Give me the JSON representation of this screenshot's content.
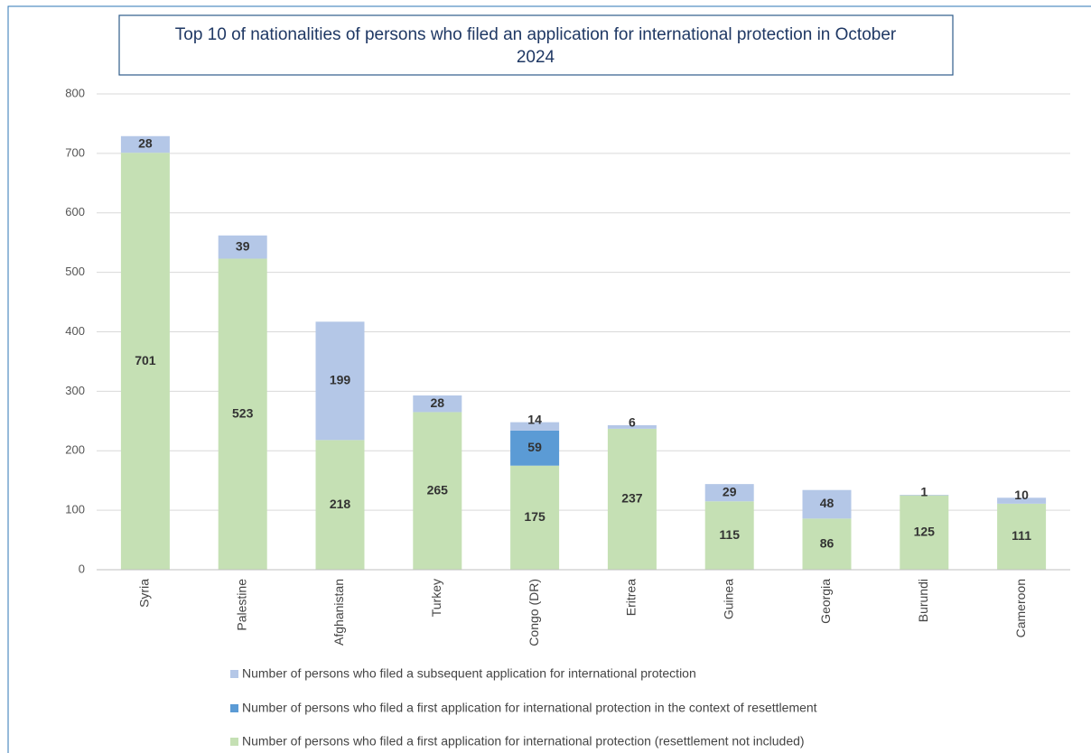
{
  "chart_data": {
    "type": "stacked_bar",
    "title": "Top 10 of nationalities of persons who filed an application for international protection in October 2024",
    "categories": [
      "Syria",
      "Palestine",
      "Afghanistan",
      "Turkey",
      "Congo (DR)",
      "Eritrea",
      "Guinea",
      "Georgia",
      "Burundi",
      "Cameroon"
    ],
    "series": [
      {
        "name": "Number of persons who filed a first application for international protection (resettlement not included)",
        "color": "#c5e0b4",
        "values": [
          701,
          523,
          218,
          265,
          175,
          237,
          115,
          86,
          125,
          111
        ]
      },
      {
        "name": "Number of persons who filed a first application for international protection in the context of resettlement",
        "color": "#5b9bd5",
        "values": [
          null,
          null,
          null,
          null,
          59,
          null,
          null,
          null,
          null,
          null
        ]
      },
      {
        "name": "Number of persons who filed a subsequent application for international protection",
        "color": "#b4c7e7",
        "values": [
          28,
          39,
          199,
          28,
          14,
          6,
          29,
          48,
          1,
          10
        ]
      }
    ],
    "ylim": [
      0,
      800
    ],
    "yticks": [
      0,
      100,
      200,
      300,
      400,
      500,
      600,
      700,
      800
    ],
    "grid": true
  }
}
